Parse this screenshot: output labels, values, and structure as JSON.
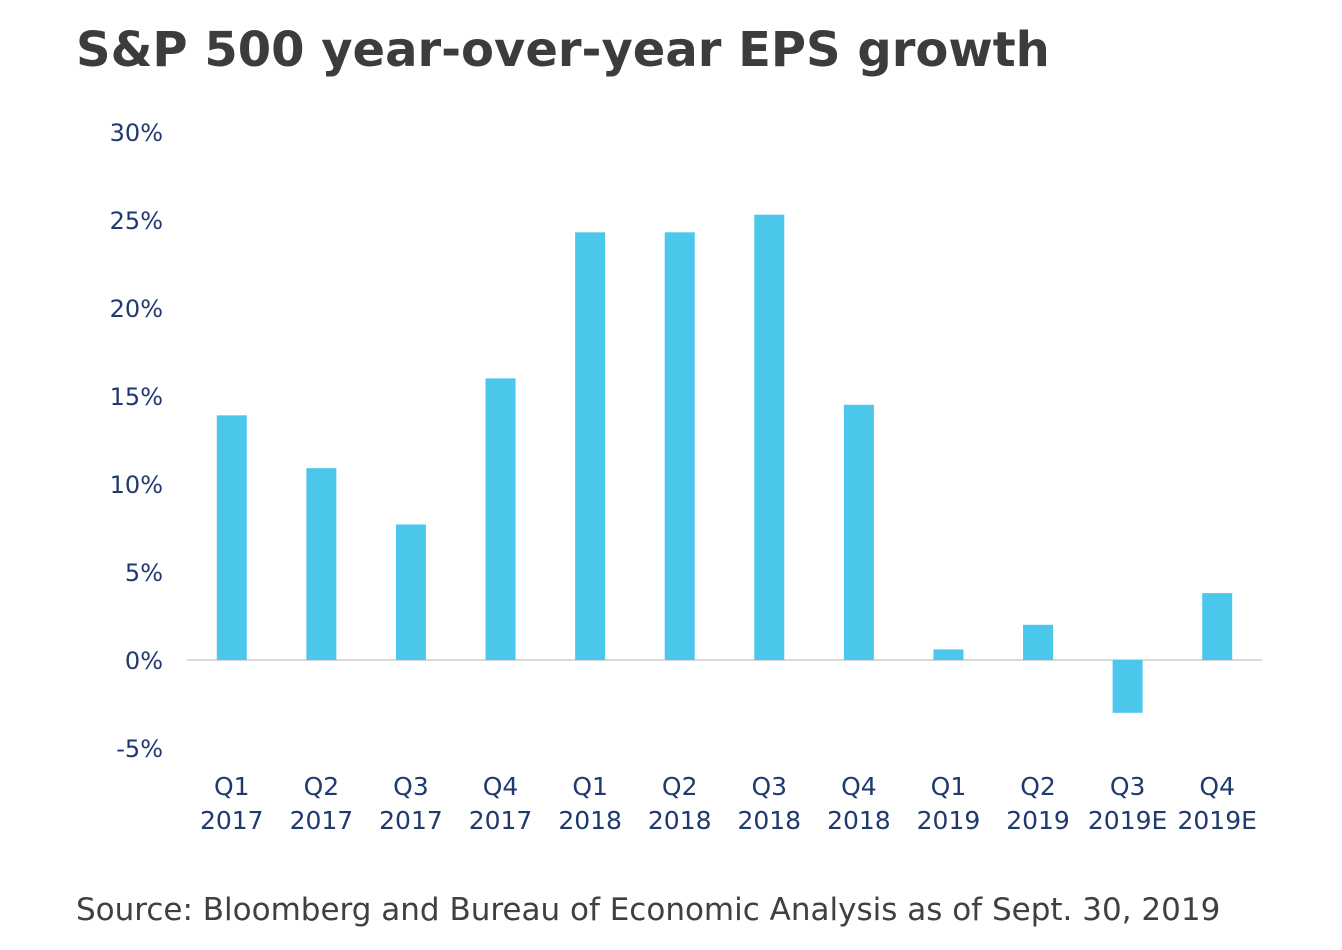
{
  "chart_data": {
    "type": "bar",
    "title": "S&P 500 year-over-year EPS growth",
    "categories": [
      [
        "Q1",
        "2017"
      ],
      [
        "Q2",
        "2017"
      ],
      [
        "Q3",
        "2017"
      ],
      [
        "Q4",
        "2017"
      ],
      [
        "Q1",
        "2018"
      ],
      [
        "Q2",
        "2018"
      ],
      [
        "Q3",
        "2018"
      ],
      [
        "Q4",
        "2018"
      ],
      [
        "Q1",
        "2019"
      ],
      [
        "Q2",
        "2019"
      ],
      [
        "Q3",
        "2019E"
      ],
      [
        "Q4",
        "2019E"
      ]
    ],
    "values": [
      13.9,
      10.9,
      7.7,
      16.0,
      24.3,
      24.3,
      25.3,
      14.5,
      0.6,
      2.0,
      -3.0,
      3.8
    ],
    "ylim": [
      -5,
      30
    ],
    "yticks": [
      -5,
      0,
      5,
      10,
      15,
      20,
      25,
      30
    ],
    "ytick_labels": [
      "-5%",
      "0%",
      "5%",
      "10%",
      "15%",
      "20%",
      "25%",
      "30%"
    ],
    "xlabel": "",
    "ylabel": "",
    "grid": false,
    "colors": {
      "bar": "#4cc7ec",
      "axis_line": "#d9d9d9",
      "tick_text": "#1f3a6e"
    }
  },
  "source_note": "Source: Bloomberg and Bureau of Economic Analysis as of Sept. 30, 2019"
}
